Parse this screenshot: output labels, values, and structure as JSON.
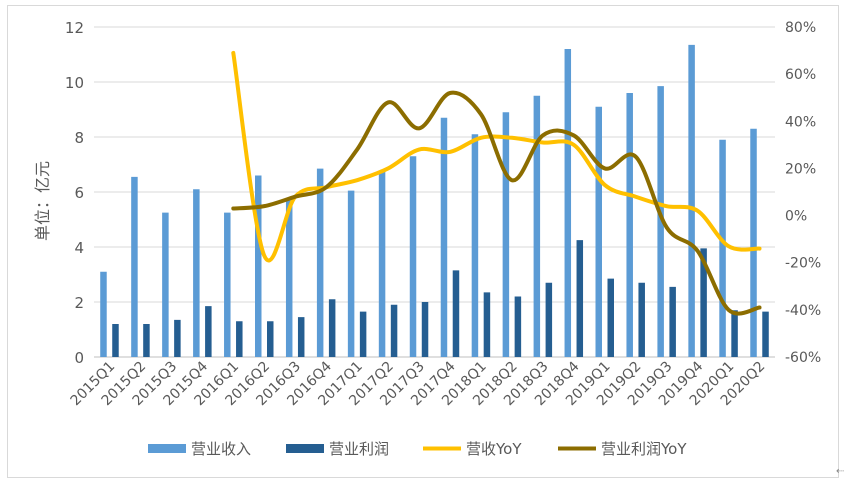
{
  "chart_data": {
    "type": "bar+line",
    "categories": [
      "2015Q1",
      "2015Q2",
      "2015Q3",
      "2015Q4",
      "2016Q1",
      "2016Q2",
      "2016Q3",
      "2016Q4",
      "2017Q1",
      "2017Q2",
      "2017Q3",
      "2017Q4",
      "2018Q1",
      "2018Q2",
      "2018Q3",
      "2018Q4",
      "2019Q1",
      "2019Q2",
      "2019Q3",
      "2019Q4",
      "2020Q1",
      "2020Q2"
    ],
    "ylabel": "单位：亿元",
    "ylim": [
      0,
      12
    ],
    "y_ticks": [
      0,
      2,
      4,
      6,
      8,
      10,
      12
    ],
    "y2lim": [
      -60,
      80
    ],
    "y2_ticks": [
      "-60%",
      "-40%",
      "-20%",
      "0%",
      "20%",
      "40%",
      "60%",
      "80%"
    ],
    "y2_tick_values": [
      -60,
      -40,
      -20,
      0,
      20,
      40,
      60,
      80
    ],
    "legend_position": "bottom",
    "grid": true,
    "series": [
      {
        "name": "营业收入",
        "type": "bar",
        "axis": "left",
        "color": "#5b9bd5",
        "values": [
          3.1,
          6.55,
          5.25,
          6.1,
          5.25,
          6.6,
          5.7,
          6.85,
          6.05,
          6.75,
          7.3,
          8.7,
          8.1,
          8.9,
          9.5,
          11.2,
          9.1,
          9.6,
          9.85,
          11.35,
          7.9,
          8.3
        ]
      },
      {
        "name": "营业利润",
        "type": "bar",
        "axis": "left",
        "color": "#255e91",
        "values": [
          1.2,
          1.2,
          1.35,
          1.85,
          1.3,
          1.3,
          1.45,
          2.1,
          1.65,
          1.9,
          2.0,
          3.15,
          2.35,
          2.2,
          2.7,
          4.25,
          2.85,
          2.7,
          2.55,
          3.95,
          1.7,
          1.65
        ]
      },
      {
        "name": "营收YoY",
        "type": "line",
        "axis": "right",
        "color": "#ffc000",
        "values": [
          null,
          null,
          null,
          null,
          69,
          -17,
          8,
          12,
          15,
          20,
          28,
          27,
          33,
          33,
          31,
          30,
          13,
          8,
          4,
          2,
          -13,
          -14
        ]
      },
      {
        "name": "营业利润YoY",
        "type": "line",
        "axis": "right",
        "color": "#8c6d00",
        "values": [
          null,
          null,
          null,
          null,
          3,
          4,
          8,
          12,
          28,
          48,
          37,
          52,
          43,
          15,
          34,
          34,
          20,
          25,
          -5,
          -15,
          -40,
          -39
        ]
      }
    ]
  },
  "ui": {
    "corner_glyph": "⇠"
  }
}
